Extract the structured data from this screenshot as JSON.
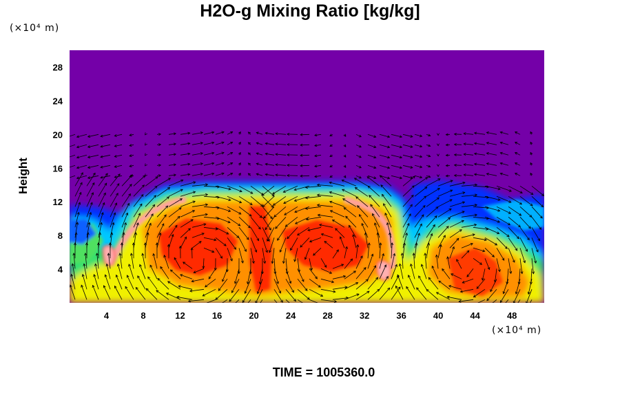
{
  "chart_data": {
    "type": "heatmap",
    "title": "H2O-g Mixing Ratio [kg/kg]",
    "ylabel": "Height",
    "xlabel": "",
    "x_unit": "(×10⁴ m)",
    "y_unit": "(×10⁴ m)",
    "xlim": [
      0,
      51.5
    ],
    "ylim": [
      0,
      30
    ],
    "x_ticks": [
      "4",
      "8",
      "12",
      "16",
      "20",
      "24",
      "28",
      "32",
      "36",
      "40",
      "44",
      "48"
    ],
    "y_ticks": [
      "4",
      "8",
      "12",
      "16",
      "20",
      "24",
      "28"
    ],
    "cloud_top_height": 13.5,
    "background_color": "#7400a8",
    "overlay": "wind vectors",
    "footer": "TIME = 1005360.0"
  }
}
